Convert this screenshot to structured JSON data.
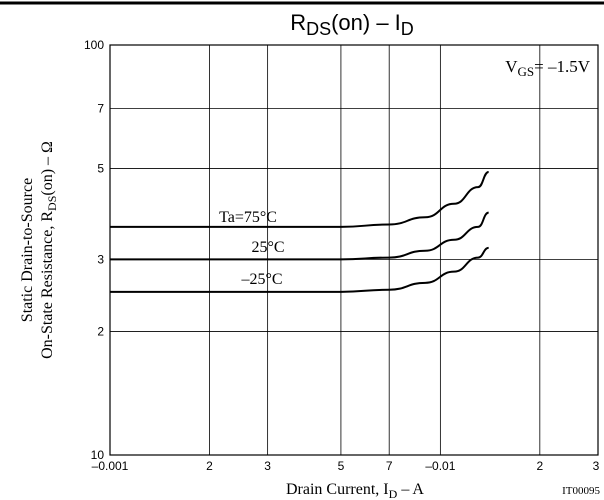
{
  "chart_data": {
    "type": "line",
    "title_parts": [
      "R",
      "DS",
      "(on)  –  I",
      "D"
    ],
    "y_label_lines": [
      "Static Drain-to-Source",
      "On-State Resistance, R",
      "DS",
      "(on)  –  Ω"
    ],
    "x_label_parts": [
      "Drain Current, I",
      "D",
      "  –  A"
    ],
    "condition_parts": [
      "V",
      "GS",
      "= –1.5V"
    ],
    "figure_code": "IT00095",
    "log_x": true,
    "log_y": true,
    "grid": true,
    "xlim": [
      -0.001,
      -0.03
    ],
    "ylim": [
      10,
      100
    ],
    "xticks": [
      {
        "value": -0.001,
        "label": "–0.001"
      },
      {
        "value": -0.002,
        "label": "2"
      },
      {
        "value": -0.003,
        "label": "3"
      },
      {
        "value": -0.005,
        "label": "5"
      },
      {
        "value": -0.007,
        "label": "7"
      },
      {
        "value": -0.01,
        "label": "–0.01"
      },
      {
        "value": -0.02,
        "label": "2"
      },
      {
        "value": -0.03,
        "label": "3"
      }
    ],
    "yticks": [
      10,
      {
        "value": 20,
        "label": "2"
      },
      {
        "value": 30,
        "label": "3"
      },
      {
        "value": 50,
        "label": "5"
      },
      {
        "value": 70,
        "label": "7"
      },
      100
    ],
    "x": [
      -0.001,
      -0.002,
      -0.003,
      -0.005,
      -0.007,
      -0.009,
      -0.011,
      -0.013,
      -0.014
    ],
    "series": [
      {
        "name": "Ta=75°C",
        "color": "#000000",
        "values": [
          36,
          36,
          36,
          36,
          36.5,
          38,
          41,
          45,
          49
        ]
      },
      {
        "name": "25°C",
        "color": "#000000",
        "values": [
          30,
          30,
          30,
          30,
          30.3,
          31.5,
          33.5,
          36,
          39
        ]
      },
      {
        "name": "–25°C",
        "color": "#000000",
        "values": [
          25,
          25,
          25,
          25,
          25.3,
          26.3,
          28,
          30.3,
          32
        ]
      }
    ]
  }
}
